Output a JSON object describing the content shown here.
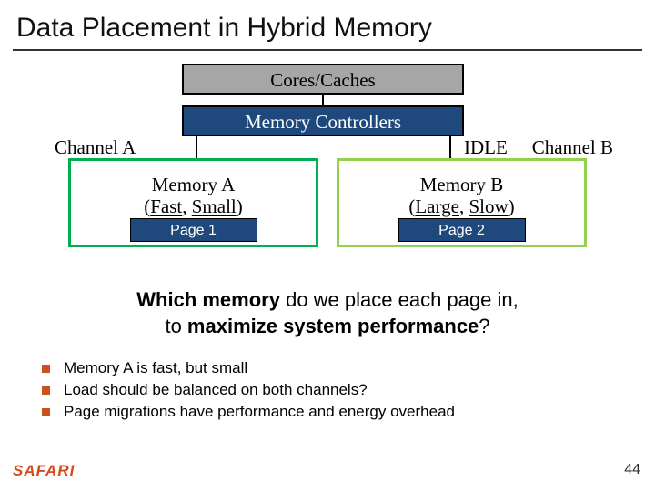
{
  "title": "Data Placement in Hybrid Memory",
  "diagram": {
    "cores": "Cores/Caches",
    "mc": "Memory Controllers",
    "channel_a": "Channel A",
    "channel_b": "Channel B",
    "idle": "IDLE",
    "mem_a": {
      "name": "Memory A",
      "attr_l": "Fast",
      "attr_r": "Small",
      "page": "Page 1",
      "border": "#00b050"
    },
    "mem_b": {
      "name": "Memory B",
      "attr_l": "Large",
      "attr_r": "Slow",
      "page": "Page 2",
      "border": "#92d050"
    },
    "box_fill_gray": "#a6a6a6",
    "box_fill_navy": "#1f497d"
  },
  "question": {
    "l1a": "Which memory",
    "l1b": " do we place each page in,",
    "l2a": "to ",
    "l2b": "maximize system performance",
    "l2c": "?"
  },
  "bullets": [
    "Memory A is fast, but small",
    "Load should be balanced on both channels?",
    "Page migrations have performance and energy overhead"
  ],
  "logo": "SAFARI",
  "page_number": "44",
  "bullet_color": "#c9521e"
}
